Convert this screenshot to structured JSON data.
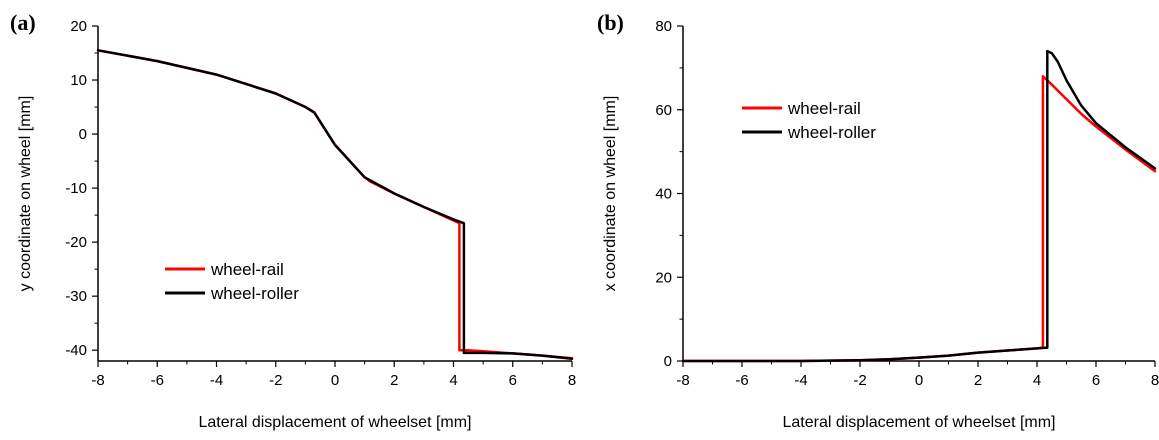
{
  "chart_data": [
    {
      "panel_label": "(a)",
      "type": "line",
      "xlabel": "Lateral displacement of wheelset [mm]",
      "ylabel": "y coordinate on wheel [mm]",
      "xlim": [
        -8,
        8
      ],
      "ylim": [
        -42,
        20
      ],
      "xticks": [
        -8,
        -6,
        -4,
        -2,
        0,
        2,
        4,
        6,
        8
      ],
      "yticks": [
        -40,
        -30,
        -20,
        -10,
        0,
        10,
        20
      ],
      "grid": false,
      "legend_position": "lower-left",
      "series": [
        {
          "name": "wheel-rail",
          "color": "#ff0000",
          "x": [
            -8,
            -6,
            -4,
            -2,
            -1,
            -0.7,
            0,
            1,
            1.2,
            2,
            3,
            4,
            4.2,
            4.2,
            4.5,
            5,
            6,
            7,
            8
          ],
          "y": [
            15.5,
            13.5,
            11,
            7.5,
            5,
            4,
            -2,
            -8,
            -8.8,
            -11,
            -13.5,
            -16,
            -16.5,
            -40,
            -40,
            -40.2,
            -40.6,
            -41,
            -41.5
          ]
        },
        {
          "name": "wheel-roller",
          "color": "#000000",
          "x": [
            -8,
            -6,
            -4,
            -2,
            -1,
            -0.7,
            0,
            1,
            1.2,
            2,
            3,
            4,
            4.35,
            4.35,
            4.6,
            5,
            6,
            7,
            8
          ],
          "y": [
            15.5,
            13.5,
            11,
            7.5,
            5,
            4,
            -2,
            -8,
            -8.6,
            -11,
            -13.5,
            -15.8,
            -16.5,
            -40.5,
            -40.5,
            -40.5,
            -40.6,
            -41,
            -41.6
          ]
        }
      ]
    },
    {
      "panel_label": "(b)",
      "type": "line",
      "xlabel": "Lateral displacement of wheelset [mm]",
      "ylabel": "x coordinate on wheel [mm]",
      "xlim": [
        -8,
        8
      ],
      "ylim": [
        0,
        80
      ],
      "xticks": [
        -8,
        -6,
        -4,
        -2,
        0,
        2,
        4,
        6,
        8
      ],
      "yticks": [
        0,
        20,
        40,
        60,
        80
      ],
      "grid": false,
      "legend_position": "top-left",
      "series": [
        {
          "name": "wheel-rail",
          "color": "#ff0000",
          "x": [
            -8,
            -6,
            -4,
            -2,
            -1,
            0,
            1,
            2,
            3,
            4,
            4.2,
            4.2,
            4.5,
            5,
            5.5,
            6,
            7,
            8
          ],
          "y": [
            0,
            0,
            0,
            0.2,
            0.4,
            0.8,
            1.3,
            2,
            2.5,
            3,
            3.2,
            68,
            66,
            62.5,
            59,
            56,
            50.5,
            45.3
          ]
        },
        {
          "name": "wheel-roller",
          "color": "#000000",
          "x": [
            -8,
            -6,
            -4,
            -2,
            -1,
            0,
            1,
            2,
            3,
            4,
            4.35,
            4.35,
            4.5,
            4.7,
            5,
            5.5,
            6,
            7,
            8
          ],
          "y": [
            0,
            0,
            0,
            0.2,
            0.4,
            0.8,
            1.3,
            2,
            2.5,
            3,
            3.2,
            74,
            73.5,
            71.5,
            67,
            61,
            56.8,
            51,
            46
          ]
        }
      ]
    }
  ]
}
